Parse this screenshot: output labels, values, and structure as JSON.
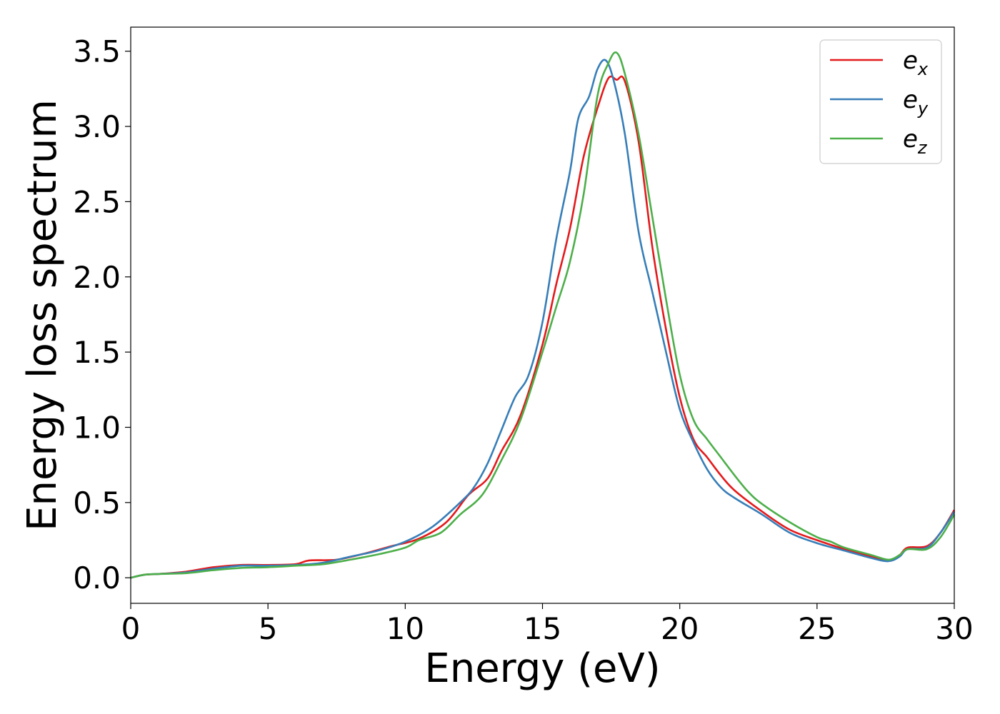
{
  "chart_data": {
    "type": "line",
    "title": "",
    "xlabel": "Energy (eV)",
    "ylabel": "Energy loss spectrum",
    "xlim": [
      0,
      30
    ],
    "ylim": [
      -0.17,
      3.66
    ],
    "xticks": [
      0,
      5,
      10,
      15,
      20,
      25,
      30
    ],
    "xtick_labels": [
      "0",
      "5",
      "10",
      "15",
      "20",
      "25",
      "30"
    ],
    "yticks": [
      0.0,
      0.5,
      1.0,
      1.5,
      2.0,
      2.5,
      3.0,
      3.5
    ],
    "ytick_labels": [
      "0.0",
      "0.5",
      "1.0",
      "1.5",
      "2.0",
      "2.5",
      "3.0",
      "3.5"
    ],
    "grid": false,
    "legend_position": "top-right",
    "series": [
      {
        "name": "e_x",
        "legend_base": "e",
        "legend_sub": "x",
        "color": "#e41a1c",
        "points": [
          [
            0,
            0.0
          ],
          [
            0.5,
            0.02
          ],
          [
            1,
            0.025
          ],
          [
            2,
            0.04
          ],
          [
            3,
            0.07
          ],
          [
            4,
            0.085
          ],
          [
            5,
            0.085
          ],
          [
            6,
            0.09
          ],
          [
            6.5,
            0.115
          ],
          [
            7.5,
            0.12
          ],
          [
            8.5,
            0.16
          ],
          [
            9.5,
            0.21
          ],
          [
            10.5,
            0.26
          ],
          [
            11.5,
            0.37
          ],
          [
            12.3,
            0.55
          ],
          [
            13,
            0.66
          ],
          [
            13.5,
            0.84
          ],
          [
            14.2,
            1.08
          ],
          [
            15,
            1.55
          ],
          [
            15.5,
            1.95
          ],
          [
            16,
            2.32
          ],
          [
            16.5,
            2.8
          ],
          [
            17,
            3.12
          ],
          [
            17.4,
            3.32
          ],
          [
            17.7,
            3.31
          ],
          [
            18,
            3.3
          ],
          [
            18.5,
            2.9
          ],
          [
            19,
            2.2
          ],
          [
            19.5,
            1.65
          ],
          [
            20,
            1.2
          ],
          [
            20.5,
            0.92
          ],
          [
            21,
            0.8
          ],
          [
            21.5,
            0.68
          ],
          [
            22,
            0.58
          ],
          [
            23,
            0.44
          ],
          [
            24,
            0.32
          ],
          [
            25,
            0.25
          ],
          [
            26,
            0.19
          ],
          [
            27,
            0.14
          ],
          [
            27.6,
            0.115
          ],
          [
            28,
            0.15
          ],
          [
            28.3,
            0.2
          ],
          [
            29,
            0.21
          ],
          [
            29.5,
            0.3
          ],
          [
            30,
            0.45
          ]
        ]
      },
      {
        "name": "e_y",
        "legend_base": "e",
        "legend_sub": "y",
        "color": "#377eb8",
        "points": [
          [
            0,
            0.0
          ],
          [
            0.5,
            0.02
          ],
          [
            1,
            0.025
          ],
          [
            2,
            0.035
          ],
          [
            3,
            0.06
          ],
          [
            4,
            0.08
          ],
          [
            5,
            0.08
          ],
          [
            6,
            0.085
          ],
          [
            7,
            0.1
          ],
          [
            8,
            0.14
          ],
          [
            9,
            0.18
          ],
          [
            10,
            0.24
          ],
          [
            11,
            0.34
          ],
          [
            12,
            0.5
          ],
          [
            12.5,
            0.6
          ],
          [
            13,
            0.76
          ],
          [
            13.5,
            0.98
          ],
          [
            14,
            1.2
          ],
          [
            14.5,
            1.35
          ],
          [
            15,
            1.7
          ],
          [
            15.5,
            2.25
          ],
          [
            16,
            2.7
          ],
          [
            16.3,
            3.05
          ],
          [
            16.7,
            3.2
          ],
          [
            17,
            3.38
          ],
          [
            17.3,
            3.44
          ],
          [
            17.6,
            3.3
          ],
          [
            18,
            2.95
          ],
          [
            18.5,
            2.3
          ],
          [
            19,
            1.9
          ],
          [
            19.5,
            1.5
          ],
          [
            20,
            1.12
          ],
          [
            20.5,
            0.9
          ],
          [
            21,
            0.72
          ],
          [
            21.5,
            0.6
          ],
          [
            22,
            0.53
          ],
          [
            23,
            0.42
          ],
          [
            24,
            0.3
          ],
          [
            25,
            0.23
          ],
          [
            26,
            0.18
          ],
          [
            27,
            0.13
          ],
          [
            27.6,
            0.11
          ],
          [
            28,
            0.14
          ],
          [
            28.3,
            0.19
          ],
          [
            29,
            0.2
          ],
          [
            29.5,
            0.3
          ],
          [
            30,
            0.44
          ]
        ]
      },
      {
        "name": "e_z",
        "legend_base": "e",
        "legend_sub": "z",
        "color": "#4daf4a",
        "points": [
          [
            0,
            0.0
          ],
          [
            0.5,
            0.02
          ],
          [
            1,
            0.025
          ],
          [
            2,
            0.03
          ],
          [
            3,
            0.05
          ],
          [
            4,
            0.065
          ],
          [
            5,
            0.07
          ],
          [
            6,
            0.08
          ],
          [
            7,
            0.09
          ],
          [
            8,
            0.12
          ],
          [
            9,
            0.155
          ],
          [
            10,
            0.2
          ],
          [
            10.5,
            0.25
          ],
          [
            11.3,
            0.3
          ],
          [
            12,
            0.42
          ],
          [
            12.8,
            0.55
          ],
          [
            13.5,
            0.78
          ],
          [
            14.2,
            1.05
          ],
          [
            15,
            1.5
          ],
          [
            15.5,
            1.8
          ],
          [
            16,
            2.1
          ],
          [
            16.5,
            2.55
          ],
          [
            17,
            3.2
          ],
          [
            17.4,
            3.42
          ],
          [
            17.7,
            3.49
          ],
          [
            18,
            3.35
          ],
          [
            18.5,
            2.95
          ],
          [
            19,
            2.4
          ],
          [
            19.5,
            1.85
          ],
          [
            20,
            1.35
          ],
          [
            20.5,
            1.05
          ],
          [
            21,
            0.92
          ],
          [
            21.5,
            0.8
          ],
          [
            22,
            0.68
          ],
          [
            22.5,
            0.57
          ],
          [
            23,
            0.49
          ],
          [
            24,
            0.37
          ],
          [
            25,
            0.27
          ],
          [
            25.5,
            0.24
          ],
          [
            26,
            0.2
          ],
          [
            27,
            0.15
          ],
          [
            27.6,
            0.12
          ],
          [
            28,
            0.15
          ],
          [
            28.3,
            0.19
          ],
          [
            29,
            0.19
          ],
          [
            29.5,
            0.27
          ],
          [
            30,
            0.42
          ]
        ]
      }
    ]
  }
}
